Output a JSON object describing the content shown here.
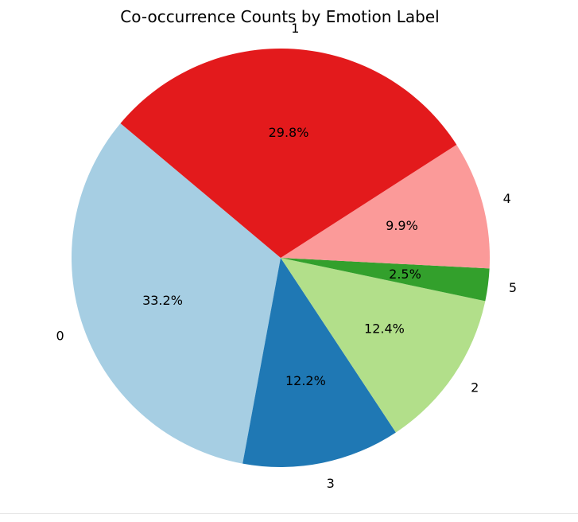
{
  "chart_data": {
    "type": "pie",
    "title": "Co-occurrence Counts by Emotion Label",
    "start_angle_deg": 140,
    "direction": "counterclockwise",
    "slices": [
      {
        "label": "0",
        "percent_label": "33.2%",
        "value": 33.2,
        "color": "#a6cee3"
      },
      {
        "label": "3",
        "percent_label": "12.2%",
        "value": 12.2,
        "color": "#1f78b4"
      },
      {
        "label": "2",
        "percent_label": "12.4%",
        "value": 12.4,
        "color": "#b2df8a"
      },
      {
        "label": "5",
        "percent_label": "2.5%",
        "value": 2.5,
        "color": "#33a02c"
      },
      {
        "label": "4",
        "percent_label": "9.9%",
        "value": 9.9,
        "color": "#fb9a99"
      },
      {
        "label": "1",
        "percent_label": "29.8%",
        "value": 29.8,
        "color": "#e31a1c"
      }
    ]
  }
}
